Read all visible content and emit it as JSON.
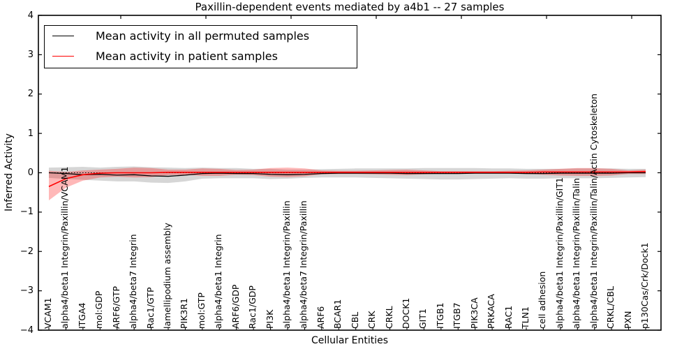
{
  "chart_data": {
    "type": "line",
    "title": "Paxillin-dependent events mediated by a4b1 -- 27 samples",
    "xlabel": "Cellular Entities",
    "ylabel": "Inferred Activity",
    "ylim": [
      -4,
      4
    ],
    "ytick_values": [
      -4,
      -3,
      -2,
      -1,
      0,
      1,
      2,
      3,
      4
    ],
    "ytick_labels": [
      "−4",
      "−3",
      "−2",
      "−1",
      "0",
      "1",
      "2",
      "3",
      "4"
    ],
    "grid": false,
    "legend_position": "upper left",
    "zero_reference_line": 0,
    "categories": [
      "VCAM1",
      "alpha4/beta1 Integrin/Paxillin/VCAM1",
      "ITGA4",
      "mol:GDP",
      "ARF6/GTP",
      "alpha4/beta7 Integrin",
      "Rac1/GTP",
      "lamellipodium assembly",
      "PIK3R1",
      "mol:GTP",
      "alpha4/beta1 Integrin",
      "ARF6/GDP",
      "Rac1/GDP",
      "PI3K",
      "alpha4/beta1 Integrin/Paxillin",
      "alpha4/beta7 Integrin/Paxillin",
      "ARF6",
      "BCAR1",
      "CBL",
      "CRK",
      "CRKL",
      "DOCK1",
      "GIT1",
      "ITGB1",
      "ITGB7",
      "PIK3CA",
      "PRKACA",
      "RAC1",
      "TLN1",
      "cell adhesion",
      "alpha4/beta1 Integrin/Paxillin/GIT1",
      "alpha4/beta1 Integrin/Paxillin/Talin",
      "alpha4/beta1 Integrin/Paxillin/Talin/Actin Cytoskeleton",
      "CRKL/CBL",
      "PXN",
      "p130Cas/Crk/Dock1"
    ],
    "legend": [
      {
        "label": "Mean activity in all permuted samples",
        "color": "#000000"
      },
      {
        "label": "Mean activity in patient samples",
        "color": "#ff0000"
      }
    ],
    "series": [
      {
        "name": "Mean activity in all permuted samples",
        "color": "#000000",
        "line_width": 1.3,
        "band_color": "rgba(0,0,0,0.16)",
        "values": [
          0.0,
          -0.02,
          -0.05,
          -0.04,
          -0.06,
          -0.05,
          -0.08,
          -0.09,
          -0.06,
          -0.02,
          -0.01,
          -0.02,
          -0.02,
          -0.04,
          -0.05,
          -0.04,
          -0.02,
          -0.01,
          -0.01,
          -0.01,
          -0.01,
          -0.02,
          -0.02,
          -0.02,
          -0.02,
          -0.01,
          -0.01,
          -0.01,
          -0.02,
          -0.02,
          -0.01,
          -0.01,
          -0.01,
          -0.01,
          0.0,
          0.0
        ],
        "band_upper": [
          0.13,
          0.14,
          0.15,
          0.13,
          0.15,
          0.16,
          0.14,
          0.13,
          0.12,
          0.13,
          0.12,
          0.12,
          0.1,
          0.1,
          0.08,
          0.08,
          0.09,
          0.1,
          0.11,
          0.11,
          0.11,
          0.11,
          0.12,
          0.12,
          0.12,
          0.12,
          0.11,
          0.11,
          0.1,
          0.1,
          0.1,
          0.11,
          0.11,
          0.11,
          0.1,
          0.1
        ],
        "band_lower": [
          -0.13,
          -0.16,
          -0.18,
          -0.2,
          -0.22,
          -0.22,
          -0.25,
          -0.26,
          -0.22,
          -0.15,
          -0.14,
          -0.14,
          -0.14,
          -0.16,
          -0.15,
          -0.13,
          -0.12,
          -0.12,
          -0.12,
          -0.13,
          -0.14,
          -0.15,
          -0.16,
          -0.17,
          -0.17,
          -0.16,
          -0.15,
          -0.14,
          -0.15,
          -0.15,
          -0.14,
          -0.14,
          -0.14,
          -0.13,
          -0.12,
          -0.11
        ]
      },
      {
        "name": "Mean activity in patient samples",
        "color": "#ff0000",
        "line_width": 1.6,
        "band_color": "rgba(255,0,0,0.28)",
        "values": [
          -0.35,
          -0.15,
          -0.05,
          -0.01,
          0.0,
          0.0,
          0.0,
          0.01,
          0.01,
          0.01,
          0.01,
          0.01,
          0.01,
          0.01,
          0.01,
          0.01,
          0.01,
          0.01,
          0.01,
          0.01,
          0.01,
          0.01,
          0.01,
          0.01,
          0.01,
          0.01,
          0.01,
          0.01,
          0.01,
          0.02,
          0.02,
          0.02,
          0.02,
          0.02,
          0.02,
          0.03
        ],
        "band_upper": [
          0.05,
          0.02,
          0.06,
          0.08,
          0.1,
          0.13,
          0.12,
          0.08,
          0.08,
          0.11,
          0.1,
          0.07,
          0.08,
          0.12,
          0.13,
          0.11,
          0.06,
          0.05,
          0.05,
          0.06,
          0.07,
          0.08,
          0.06,
          0.04,
          0.04,
          0.04,
          0.04,
          0.05,
          0.06,
          0.08,
          0.1,
          0.12,
          0.12,
          0.1,
          0.06,
          0.08
        ],
        "band_lower": [
          -0.7,
          -0.38,
          -0.2,
          -0.12,
          -0.1,
          -0.12,
          -0.11,
          -0.06,
          -0.05,
          -0.08,
          -0.08,
          -0.05,
          -0.06,
          -0.1,
          -0.11,
          -0.09,
          -0.04,
          -0.03,
          -0.03,
          -0.04,
          -0.05,
          -0.06,
          -0.04,
          -0.02,
          -0.02,
          -0.02,
          -0.02,
          -0.02,
          -0.03,
          -0.05,
          -0.07,
          -0.08,
          -0.08,
          -0.07,
          -0.03,
          -0.03
        ]
      }
    ]
  }
}
